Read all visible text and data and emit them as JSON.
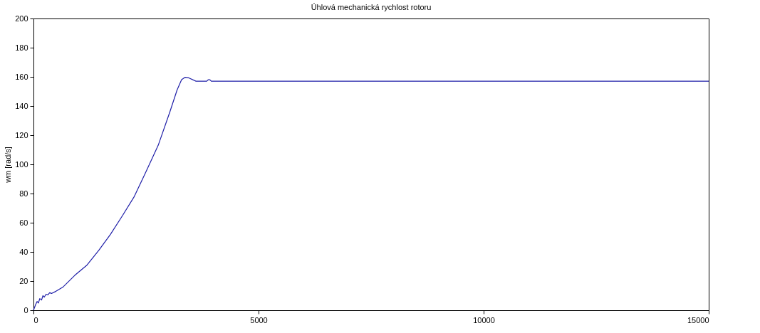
{
  "chart_data": {
    "type": "line",
    "title": "Úhlová mechanická rychlost rotoru",
    "ylabel": "wm [rad/s]",
    "xlim": [
      0,
      15000
    ],
    "xticks": [
      0,
      5000,
      10000,
      15000
    ],
    "ylim": [
      0,
      200
    ],
    "yticks": [
      0,
      20,
      40,
      60,
      80,
      100,
      120,
      140,
      160,
      180,
      200
    ],
    "grid": false,
    "series": [
      {
        "color": "#1f1fa8",
        "x": [
          0,
          50,
          80,
          110,
          140,
          180,
          210,
          240,
          280,
          320,
          360,
          400,
          500,
          660,
          920,
          1190,
          1450,
          1710,
          1980,
          2240,
          2500,
          2770,
          3030,
          3190,
          3290,
          3370,
          3450,
          3610,
          3850,
          3880,
          3920,
          3950,
          15000
        ],
        "values": [
          0,
          4,
          6,
          5,
          8,
          7,
          10,
          9,
          11,
          10.5,
          12,
          11.5,
          13,
          16,
          24,
          31,
          41,
          52,
          65,
          78,
          95,
          113,
          136,
          151,
          158,
          159.7,
          159.3,
          157,
          157,
          158,
          158,
          157,
          157
        ]
      }
    ]
  }
}
